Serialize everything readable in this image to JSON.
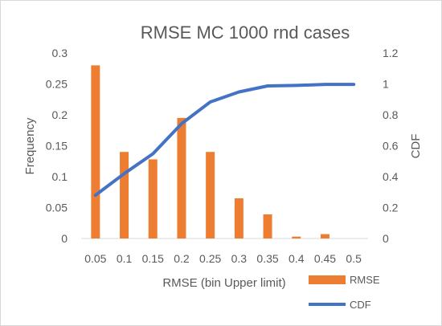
{
  "chart_data": {
    "type": "bar",
    "title": "RMSE MC 1000 rnd cases",
    "xlabel": "RMSE (bin Upper limit)",
    "ylabel": "Frequency",
    "y2label": "CDF",
    "categories": [
      "0.05",
      "0.1",
      "0.15",
      "0.2",
      "0.25",
      "0.3",
      "0.35",
      "0.4",
      "0.45",
      "0.5"
    ],
    "series": [
      {
        "name": "RMSE",
        "kind": "bar",
        "axis": "left",
        "color": "#ED7D31",
        "values": [
          0.28,
          0.14,
          0.128,
          0.195,
          0.14,
          0.065,
          0.039,
          0.003,
          0.007,
          0.0
        ]
      },
      {
        "name": "CDF",
        "kind": "line",
        "axis": "right",
        "color": "#4472C4",
        "values": [
          0.28,
          0.42,
          0.548,
          0.743,
          0.883,
          0.948,
          0.987,
          0.99,
          0.997,
          0.997
        ]
      }
    ],
    "ylim": [
      0,
      0.3
    ],
    "yticks": [
      "0",
      "0.05",
      "0.1",
      "0.15",
      "0.2",
      "0.25",
      "0.3"
    ],
    "y2lim": [
      0,
      1.2
    ],
    "y2ticks": [
      "0",
      "0.2",
      "0.4",
      "0.6",
      "0.8",
      "1",
      "1.2"
    ],
    "grid": false,
    "legend_position": "bottom-right"
  }
}
